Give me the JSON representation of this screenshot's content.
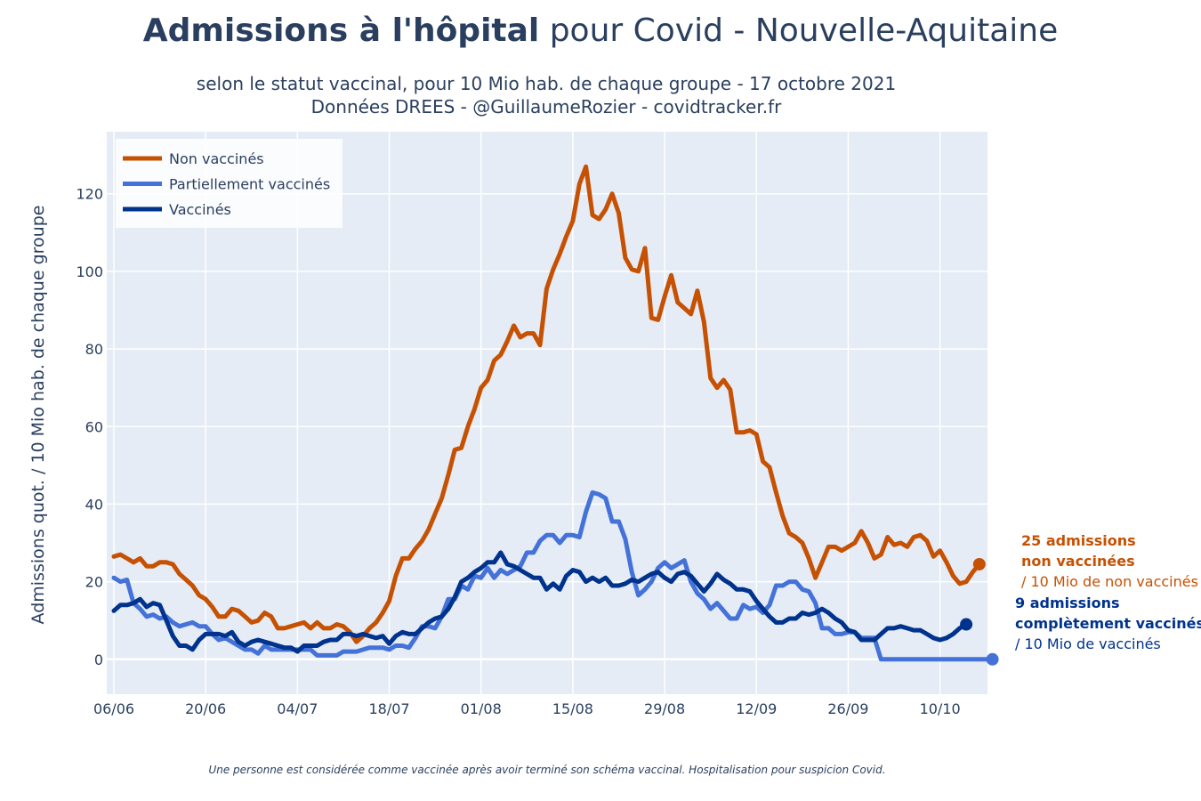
{
  "title_bold": "Admissions à l'hôpital",
  "title_rest": "pour Covid - Nouvelle-Aquitaine",
  "subtitle_line1": "selon le statut vaccinal, pour 10 Mio hab. de chaque groupe - 17 octobre 2021",
  "subtitle_line2": "Données DREES - @GuillaumeRozier - covidtracker.fr",
  "footnote": "Une personne est considérée comme vaccinée après avoir terminé son schéma vaccinal. Hospitalisation pour suspicion Covid.",
  "annotations": {
    "unvax_line1": "25 admissions",
    "unvax_line2": "non vaccinées",
    "unvax_line3": "/ 10 Mio de non vaccinés",
    "vax_line1": "9 admissions",
    "vax_line2": "complètement vaccinés",
    "vax_line3": "/ 10 Mio de vaccinés"
  },
  "colors": {
    "unvaccinated": "#c65102",
    "partial": "#4472d8",
    "vaccinated": "#00338d",
    "plot_bg": "#e5ecf6",
    "grid": "#ffffff",
    "text": "#2a3f5f"
  },
  "chart_data": {
    "type": "line",
    "title": "Admissions à l'hôpital pour Covid - Nouvelle-Aquitaine",
    "xlabel": "",
    "ylabel": "Admissions quot. / 10 Mio hab. de chaque groupe",
    "x_start": "2021-06-06",
    "x_ticks": [
      "06/06",
      "20/06",
      "04/07",
      "18/07",
      "01/08",
      "15/08",
      "29/08",
      "12/09",
      "26/09",
      "10/10"
    ],
    "y_ticks": [
      0,
      20,
      40,
      60,
      80,
      100,
      120
    ],
    "ylim": [
      -9,
      136
    ],
    "grid": true,
    "legend_position": "top-left",
    "series": [
      {
        "name": "Non vaccinés",
        "values": [
          26.5,
          27,
          26,
          25,
          26,
          24,
          24,
          25,
          25,
          24.5,
          22,
          20.5,
          19,
          16.5,
          15.5,
          13.5,
          11,
          11,
          13,
          12.5,
          11,
          9.5,
          10,
          12,
          11,
          8,
          8,
          8.5,
          9,
          9.5,
          8,
          9.5,
          8,
          8,
          9,
          8.5,
          7,
          4.5,
          6,
          8,
          9.5,
          12,
          15,
          21.5,
          26,
          26,
          28.5,
          30.5,
          33.5,
          37.5,
          41.5,
          47.5,
          54,
          54.5,
          60,
          64.5,
          70,
          72,
          77,
          78.5,
          82,
          86,
          83,
          84,
          84,
          81,
          95.5,
          100.5,
          104.5,
          109,
          113,
          122.5,
          127,
          114.5,
          113.5,
          116,
          120,
          115,
          103.5,
          100.5,
          100,
          106,
          88,
          87.5,
          93.5,
          99,
          92,
          90.5,
          89,
          95,
          87,
          72.5,
          70,
          72,
          69.5,
          58.5,
          58.5,
          59,
          58,
          51,
          49.5,
          43,
          37,
          32.5,
          31.5,
          30,
          26,
          21,
          25,
          29,
          29,
          28,
          29,
          30,
          33,
          30,
          26,
          27,
          31.5,
          29.5,
          30,
          29,
          31.5,
          32,
          30.5,
          26.5,
          28,
          25,
          21.5,
          19.5,
          20,
          22.5,
          24.5
        ]
      },
      {
        "name": "Partiellement vaccinés",
        "values": [
          21,
          20,
          20.5,
          14.5,
          13,
          11,
          11.5,
          10.5,
          11,
          9.5,
          8.5,
          9,
          9.5,
          8.5,
          8.5,
          6.5,
          5,
          5.5,
          4.5,
          3.5,
          2.5,
          2.5,
          1.5,
          3.5,
          2.5,
          2.5,
          2.5,
          2.5,
          2.5,
          2.5,
          2.5,
          1,
          1,
          1,
          1,
          2,
          2,
          2,
          2.5,
          3,
          3,
          3,
          2.5,
          3.5,
          3.5,
          3,
          5.5,
          8.5,
          8.5,
          8,
          11,
          15.5,
          15.5,
          19,
          18,
          21.5,
          21,
          23.5,
          21,
          23,
          22,
          23,
          24,
          27.5,
          27.5,
          30.5,
          32,
          32,
          30,
          32,
          32,
          31.5,
          38,
          43,
          42.5,
          41.5,
          35.5,
          35.5,
          31,
          22.5,
          16.5,
          18,
          20,
          23.5,
          25,
          23.5,
          24.5,
          25.5,
          20,
          17,
          15.5,
          13,
          14.5,
          12.5,
          10.5,
          10.5,
          14,
          13,
          13.5,
          12,
          14,
          19,
          19,
          20,
          20,
          18,
          17.5,
          14.5,
          8,
          8,
          6.5,
          6.5,
          7,
          7,
          5.5,
          5.5,
          5.5,
          0,
          0,
          0,
          0,
          0,
          0,
          0,
          0,
          0,
          0,
          0,
          0,
          0,
          0,
          0,
          0,
          0,
          0
        ]
      },
      {
        "name": "Vaccinés",
        "values": [
          12.5,
          14,
          14,
          14.5,
          15.5,
          13.5,
          14.5,
          14,
          10,
          6,
          3.5,
          3.5,
          2.5,
          5,
          6.5,
          6.5,
          6.5,
          6,
          7,
          4.5,
          3.5,
          4.5,
          5,
          4.5,
          4,
          3.5,
          3,
          3,
          2,
          3.5,
          3.5,
          3.5,
          4.5,
          5,
          5,
          6.5,
          6.5,
          6,
          6.5,
          6,
          5.5,
          6,
          4,
          6,
          7,
          6.5,
          6.5,
          8,
          9.5,
          10.5,
          11,
          13,
          16,
          20,
          21,
          22.5,
          23.5,
          25,
          25,
          27.5,
          24.5,
          24,
          23,
          22,
          21,
          21,
          18,
          19.5,
          18,
          21.5,
          23,
          22.5,
          20,
          21,
          20,
          21,
          19,
          19,
          19.5,
          20.5,
          20,
          21,
          22,
          22.5,
          21,
          20,
          22,
          22.5,
          21.5,
          19.5,
          17.5,
          19.5,
          22,
          20.5,
          19.5,
          18,
          18,
          17.5,
          15,
          13,
          11,
          9.5,
          9.5,
          10.5,
          10.5,
          12,
          11.5,
          12,
          13,
          12,
          10.5,
          9.5,
          7.5,
          7,
          5,
          5,
          5,
          6.5,
          8,
          8,
          8.5,
          8,
          7.5,
          7.5,
          6.5,
          5.5,
          5,
          5.5,
          6.5,
          8,
          9
        ]
      }
    ]
  }
}
